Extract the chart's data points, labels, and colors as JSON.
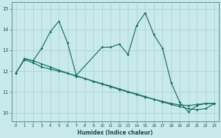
{
  "xlabel": "Humidex (Indice chaleur)",
  "bg_color": "#c8eaea",
  "grid_color": "#b0d0d0",
  "line_color": "#1a7060",
  "xlim": [
    -0.5,
    23.5
  ],
  "ylim": [
    9.6,
    15.3
  ],
  "xticks": [
    0,
    1,
    2,
    3,
    4,
    5,
    6,
    7,
    8,
    9,
    10,
    11,
    12,
    13,
    14,
    15,
    16,
    17,
    18,
    19,
    20,
    21,
    22,
    23
  ],
  "yticks": [
    10,
    11,
    12,
    13,
    14,
    15
  ],
  "series": [
    {
      "x": [
        0,
        1,
        2,
        3,
        4,
        5,
        6,
        7,
        10,
        11,
        12,
        13,
        14,
        15,
        16,
        17,
        18,
        19,
        20,
        21,
        22,
        23
      ],
      "y": [
        11.9,
        12.6,
        12.5,
        13.1,
        13.9,
        14.4,
        13.35,
        11.8,
        13.15,
        13.15,
        13.3,
        12.8,
        14.2,
        14.8,
        13.75,
        13.1,
        11.45,
        10.5,
        10.05,
        10.35,
        10.45,
        10.45
      ]
    },
    {
      "x": [
        1,
        2,
        3,
        4,
        5,
        6,
        7,
        8,
        9,
        10,
        11,
        12,
        13,
        14,
        15,
        16,
        17,
        18,
        19,
        20,
        21,
        22,
        23
      ],
      "y": [
        12.6,
        12.5,
        12.35,
        12.2,
        12.05,
        11.9,
        11.75,
        11.65,
        11.5,
        11.38,
        11.25,
        11.12,
        11.0,
        10.88,
        10.75,
        10.65,
        10.55,
        10.45,
        10.38,
        10.35,
        10.4,
        10.45,
        10.45
      ]
    },
    {
      "x": [
        0,
        1,
        2,
        3,
        4,
        5,
        6,
        7,
        8,
        9,
        10,
        11,
        12,
        13,
        14,
        15,
        16,
        17,
        18,
        19,
        20,
        21,
        22,
        23
      ],
      "y": [
        11.9,
        12.55,
        12.4,
        12.2,
        12.1,
        12.0,
        11.9,
        11.78,
        11.65,
        11.52,
        11.4,
        11.28,
        11.15,
        11.02,
        10.9,
        10.78,
        10.65,
        10.52,
        10.4,
        10.3,
        10.2,
        10.15,
        10.2,
        10.45
      ]
    }
  ]
}
